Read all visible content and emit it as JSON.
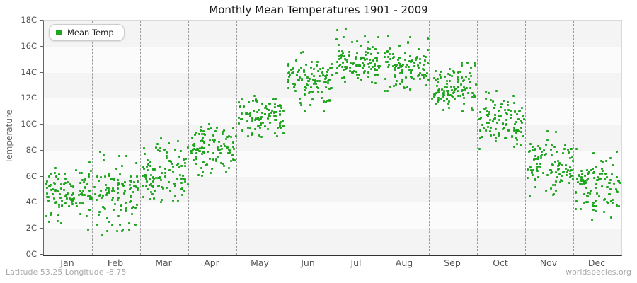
{
  "title": "Monthly Mean Temperatures 1901 - 2009",
  "legend": {
    "label": "Mean Temp"
  },
  "y_axis": {
    "title": "Temperature",
    "tick_labels": [
      "18C",
      "16C",
      "14C",
      "12C",
      "10C",
      "8C",
      "6C",
      "4C",
      "2C",
      "0C"
    ]
  },
  "x_axis": {
    "month_labels": [
      "Jan",
      "Feb",
      "Mar",
      "Apr",
      "May",
      "Jun",
      "Jul",
      "Aug",
      "Sep",
      "Oct",
      "Nov",
      "Dec"
    ]
  },
  "footer": {
    "left": "Latitude 53.25 Longitude -8.75",
    "right": "worldspecies.org"
  },
  "colors": {
    "marker": "#1da51d",
    "band_dark": "#f4f4f4",
    "band_light": "#fbfbfb",
    "gridline": "#999999",
    "axis_left": "#666666",
    "axis_bottom": "#333333",
    "plot_border": "#d9d9d9",
    "title_text": "#1a1a1a",
    "tick_text": "#555555",
    "footer_text": "#a9a9a9"
  },
  "chart_data": {
    "type": "scatter",
    "title": "Monthly Mean Temperatures 1901 - 2009",
    "xlabel": "",
    "ylabel": "Temperature",
    "ylim": [
      0,
      18
    ],
    "y_tick_step": 2,
    "x_categories": [
      "Jan",
      "Feb",
      "Mar",
      "Apr",
      "May",
      "Jun",
      "Jul",
      "Aug",
      "Sep",
      "Oct",
      "Nov",
      "Dec"
    ],
    "legend_entries": [
      "Mean Temp"
    ],
    "legend_position": "top-left",
    "grid": "vertical dashed month separators",
    "background": "alternating 2C horizontal bands, gray on even bands from top",
    "years_range": "1901 - 2009",
    "points_per_month": 109,
    "series": [
      {
        "name": "Mean Temp",
        "marker": "small green square",
        "monthly_stats": [
          {
            "month": "Jan",
            "mean": 4.7,
            "std": 1.05,
            "min": 1.2,
            "max": 7.4
          },
          {
            "month": "Feb",
            "mean": 4.6,
            "std": 1.35,
            "min": 0.5,
            "max": 8.3
          },
          {
            "month": "Mar",
            "mean": 6.3,
            "std": 1.05,
            "min": 3.8,
            "max": 9.7
          },
          {
            "month": "Apr",
            "mean": 8.1,
            "std": 0.9,
            "min": 6.1,
            "max": 10.4
          },
          {
            "month": "May",
            "mean": 10.6,
            "std": 0.78,
            "min": 8.6,
            "max": 13.1
          },
          {
            "month": "Jun",
            "mean": 13.4,
            "std": 0.95,
            "min": 10.7,
            "max": 16.4
          },
          {
            "month": "Jul",
            "mean": 14.9,
            "std": 0.95,
            "min": 12.3,
            "max": 17.5
          },
          {
            "month": "Aug",
            "mean": 14.6,
            "std": 0.9,
            "min": 12.6,
            "max": 17.1
          },
          {
            "month": "Sep",
            "mean": 12.9,
            "std": 0.85,
            "min": 10.6,
            "max": 14.8
          },
          {
            "month": "Oct",
            "mean": 10.2,
            "std": 0.95,
            "min": 7.2,
            "max": 12.9
          },
          {
            "month": "Nov",
            "mean": 6.9,
            "std": 1.05,
            "min": 2.8,
            "max": 9.6
          },
          {
            "month": "Dec",
            "mean": 5.4,
            "std": 1.15,
            "min": 2.3,
            "max": 8.3
          }
        ]
      }
    ],
    "render": {
      "seed": 19012009,
      "x_jitter": "uniform-within-month"
    }
  }
}
